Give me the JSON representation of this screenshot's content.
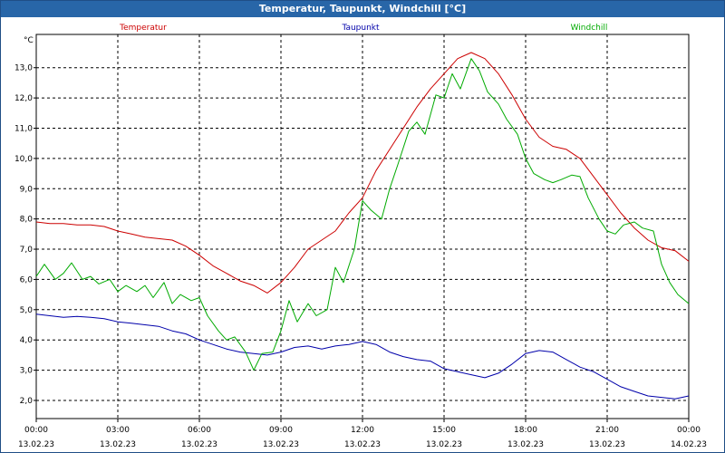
{
  "window": {
    "title": "Temperatur, Taupunkt, Windchill [°C]"
  },
  "chart_data": {
    "type": "line",
    "ylabel": "°C",
    "ylim": [
      1.4,
      14.1
    ],
    "xlim": [
      0,
      24
    ],
    "grid": true,
    "y_ticks": [
      "2,0",
      "3,0",
      "4,0",
      "5,0",
      "6,0",
      "7,0",
      "8,0",
      "9,0",
      "10,0",
      "11,0",
      "12,0",
      "13,0"
    ],
    "y_tick_values": [
      2,
      3,
      4,
      5,
      6,
      7,
      8,
      9,
      10,
      11,
      12,
      13
    ],
    "x_ticks": [
      {
        "x": 0,
        "time": "00:00",
        "date": "13.02.23"
      },
      {
        "x": 3,
        "time": "03:00",
        "date": "13.02.23"
      },
      {
        "x": 6,
        "time": "06:00",
        "date": "13.02.23"
      },
      {
        "x": 9,
        "time": "09:00",
        "date": "13.02.23"
      },
      {
        "x": 12,
        "time": "12:00",
        "date": "13.02.23"
      },
      {
        "x": 15,
        "time": "15:00",
        "date": "13.02.23"
      },
      {
        "x": 18,
        "time": "18:00",
        "date": "13.02.23"
      },
      {
        "x": 21,
        "time": "21:00",
        "date": "13.02.23"
      },
      {
        "x": 24,
        "time": "00:00",
        "date": "14.02.23"
      }
    ],
    "series": [
      {
        "name": "Temperatur",
        "color": "#cc0000",
        "points": [
          [
            0,
            7.9
          ],
          [
            0.5,
            7.85
          ],
          [
            1,
            7.85
          ],
          [
            1.5,
            7.8
          ],
          [
            2,
            7.8
          ],
          [
            2.5,
            7.75
          ],
          [
            3,
            7.6
          ],
          [
            3.5,
            7.5
          ],
          [
            4,
            7.4
          ],
          [
            4.5,
            7.35
          ],
          [
            5,
            7.3
          ],
          [
            5.5,
            7.1
          ],
          [
            6,
            6.8
          ],
          [
            6.5,
            6.45
          ],
          [
            7,
            6.2
          ],
          [
            7.5,
            5.95
          ],
          [
            8,
            5.8
          ],
          [
            8.5,
            5.55
          ],
          [
            9,
            5.9
          ],
          [
            9.5,
            6.4
          ],
          [
            10,
            7.0
          ],
          [
            10.5,
            7.3
          ],
          [
            11,
            7.6
          ],
          [
            11.5,
            8.2
          ],
          [
            12,
            8.7
          ],
          [
            12.5,
            9.6
          ],
          [
            13,
            10.3
          ],
          [
            13.5,
            11.0
          ],
          [
            14,
            11.7
          ],
          [
            14.5,
            12.3
          ],
          [
            15,
            12.8
          ],
          [
            15.5,
            13.3
          ],
          [
            16,
            13.5
          ],
          [
            16.5,
            13.3
          ],
          [
            17,
            12.8
          ],
          [
            17.5,
            12.1
          ],
          [
            18,
            11.3
          ],
          [
            18.5,
            10.7
          ],
          [
            19,
            10.4
          ],
          [
            19.5,
            10.3
          ],
          [
            20,
            10.0
          ],
          [
            20.5,
            9.4
          ],
          [
            21,
            8.8
          ],
          [
            21.5,
            8.2
          ],
          [
            22,
            7.7
          ],
          [
            22.5,
            7.3
          ],
          [
            23,
            7.05
          ],
          [
            23.5,
            6.95
          ],
          [
            24,
            6.6
          ]
        ]
      },
      {
        "name": "Taupunkt",
        "color": "#0000aa",
        "points": [
          [
            0,
            4.85
          ],
          [
            0.5,
            4.8
          ],
          [
            1,
            4.75
          ],
          [
            1.5,
            4.78
          ],
          [
            2,
            4.75
          ],
          [
            2.5,
            4.7
          ],
          [
            3,
            4.6
          ],
          [
            3.5,
            4.55
          ],
          [
            4,
            4.5
          ],
          [
            4.5,
            4.45
          ],
          [
            5,
            4.3
          ],
          [
            5.5,
            4.2
          ],
          [
            6,
            4.0
          ],
          [
            6.5,
            3.85
          ],
          [
            7,
            3.7
          ],
          [
            7.5,
            3.6
          ],
          [
            8,
            3.55
          ],
          [
            8.5,
            3.5
          ],
          [
            9,
            3.6
          ],
          [
            9.5,
            3.75
          ],
          [
            10,
            3.8
          ],
          [
            10.5,
            3.7
          ],
          [
            11,
            3.8
          ],
          [
            11.5,
            3.85
          ],
          [
            12,
            3.95
          ],
          [
            12.5,
            3.85
          ],
          [
            13,
            3.6
          ],
          [
            13.5,
            3.45
          ],
          [
            14,
            3.35
          ],
          [
            14.5,
            3.3
          ],
          [
            15,
            3.05
          ],
          [
            15.5,
            2.95
          ],
          [
            16,
            2.85
          ],
          [
            16.5,
            2.75
          ],
          [
            17,
            2.9
          ],
          [
            17.5,
            3.2
          ],
          [
            18,
            3.55
          ],
          [
            18.5,
            3.65
          ],
          [
            19,
            3.6
          ],
          [
            19.5,
            3.35
          ],
          [
            20,
            3.1
          ],
          [
            20.5,
            2.95
          ],
          [
            21,
            2.7
          ],
          [
            21.5,
            2.45
          ],
          [
            22,
            2.3
          ],
          [
            22.5,
            2.15
          ],
          [
            23,
            2.1
          ],
          [
            23.5,
            2.05
          ],
          [
            24,
            2.15
          ]
        ]
      },
      {
        "name": "Windchill",
        "color": "#00aa00",
        "points": [
          [
            0,
            6.1
          ],
          [
            0.3,
            6.5
          ],
          [
            0.7,
            6.0
          ],
          [
            1,
            6.2
          ],
          [
            1.3,
            6.55
          ],
          [
            1.7,
            6.0
          ],
          [
            2,
            6.1
          ],
          [
            2.3,
            5.85
          ],
          [
            2.7,
            6.0
          ],
          [
            3,
            5.6
          ],
          [
            3.3,
            5.8
          ],
          [
            3.7,
            5.6
          ],
          [
            4,
            5.8
          ],
          [
            4.3,
            5.4
          ],
          [
            4.7,
            5.9
          ],
          [
            5,
            5.2
          ],
          [
            5.3,
            5.5
          ],
          [
            5.7,
            5.3
          ],
          [
            6,
            5.4
          ],
          [
            6.3,
            4.8
          ],
          [
            6.7,
            4.3
          ],
          [
            7,
            4.0
          ],
          [
            7.3,
            4.1
          ],
          [
            7.7,
            3.6
          ],
          [
            8,
            3.0
          ],
          [
            8.3,
            3.55
          ],
          [
            8.7,
            3.6
          ],
          [
            9,
            4.3
          ],
          [
            9.3,
            5.3
          ],
          [
            9.6,
            4.6
          ],
          [
            10,
            5.2
          ],
          [
            10.3,
            4.8
          ],
          [
            10.7,
            5.0
          ],
          [
            11,
            6.4
          ],
          [
            11.3,
            5.9
          ],
          [
            11.7,
            7.0
          ],
          [
            12,
            8.6
          ],
          [
            12.3,
            8.3
          ],
          [
            12.7,
            8.0
          ],
          [
            13,
            9.0
          ],
          [
            13.3,
            9.8
          ],
          [
            13.7,
            10.9
          ],
          [
            14,
            11.2
          ],
          [
            14.3,
            10.8
          ],
          [
            14.7,
            12.1
          ],
          [
            15,
            12.0
          ],
          [
            15.3,
            12.8
          ],
          [
            15.6,
            12.3
          ],
          [
            16,
            13.3
          ],
          [
            16.3,
            12.9
          ],
          [
            16.6,
            12.2
          ],
          [
            17,
            11.8
          ],
          [
            17.3,
            11.3
          ],
          [
            17.7,
            10.8
          ],
          [
            18,
            10.0
          ],
          [
            18.3,
            9.5
          ],
          [
            18.7,
            9.3
          ],
          [
            19,
            9.2
          ],
          [
            19.3,
            9.3
          ],
          [
            19.7,
            9.45
          ],
          [
            20,
            9.4
          ],
          [
            20.3,
            8.7
          ],
          [
            20.7,
            8.0
          ],
          [
            21,
            7.6
          ],
          [
            21.3,
            7.5
          ],
          [
            21.6,
            7.8
          ],
          [
            22,
            7.9
          ],
          [
            22.3,
            7.7
          ],
          [
            22.7,
            7.6
          ],
          [
            23,
            6.5
          ],
          [
            23.3,
            5.9
          ],
          [
            23.6,
            5.5
          ],
          [
            24,
            5.2
          ]
        ]
      }
    ]
  }
}
